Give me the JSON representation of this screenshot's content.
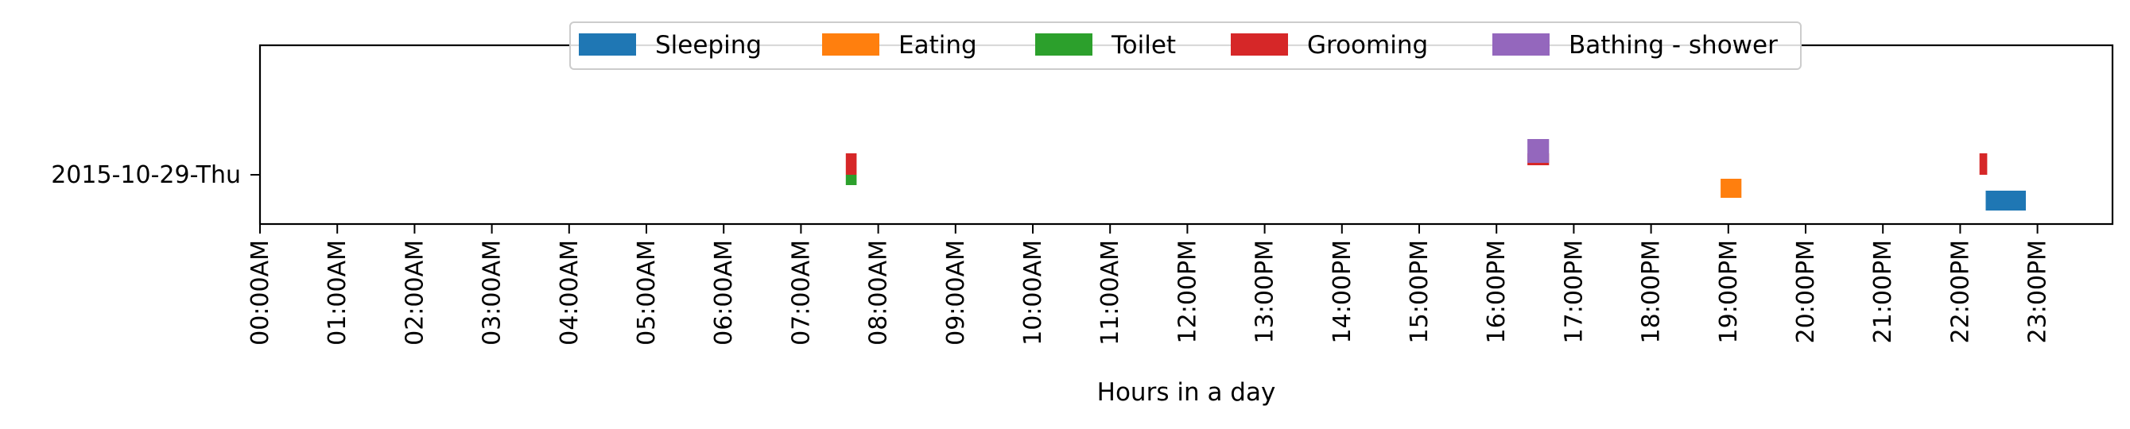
{
  "chart_data": {
    "type": "timeline",
    "title": "",
    "xlabel": "Hours in a day",
    "ylabel": "",
    "xlim": [
      0,
      24
    ],
    "x_ticks": [
      "00:00AM",
      "01:00AM",
      "02:00AM",
      "03:00AM",
      "04:00AM",
      "05:00AM",
      "06:00AM",
      "07:00AM",
      "08:00AM",
      "09:00AM",
      "10:00AM",
      "11:00AM",
      "12:00PM",
      "13:00PM",
      "14:00PM",
      "15:00PM",
      "16:00PM",
      "17:00PM",
      "18:00PM",
      "19:00PM",
      "20:00PM",
      "21:00PM",
      "22:00PM",
      "23:00PM"
    ],
    "y_categories": [
      "2015-10-29-Thu"
    ],
    "legend_position": "top-center",
    "grid": false,
    "series": [
      {
        "name": "Sleeping",
        "color": "#1f77b4",
        "segments": [
          {
            "start": 22.33,
            "end": 22.85,
            "row": 0
          }
        ]
      },
      {
        "name": "Eating",
        "color": "#ff7f0e",
        "segments": [
          {
            "start": 18.9,
            "end": 19.17,
            "row": 0
          }
        ]
      },
      {
        "name": "Toilet",
        "color": "#2ca02c",
        "segments": [
          {
            "start": 7.58,
            "end": 7.72,
            "row": 0
          }
        ]
      },
      {
        "name": "Grooming",
        "color": "#d62728",
        "segments": [
          {
            "start": 7.58,
            "end": 7.72,
            "row": 0
          },
          {
            "start": 16.4,
            "end": 16.68,
            "row": 0
          },
          {
            "start": 22.25,
            "end": 22.35,
            "row": 0
          }
        ]
      },
      {
        "name": "Bathing - shower",
        "color": "#9467bd",
        "segments": [
          {
            "start": 16.4,
            "end": 16.68,
            "row": 0
          }
        ]
      }
    ]
  }
}
